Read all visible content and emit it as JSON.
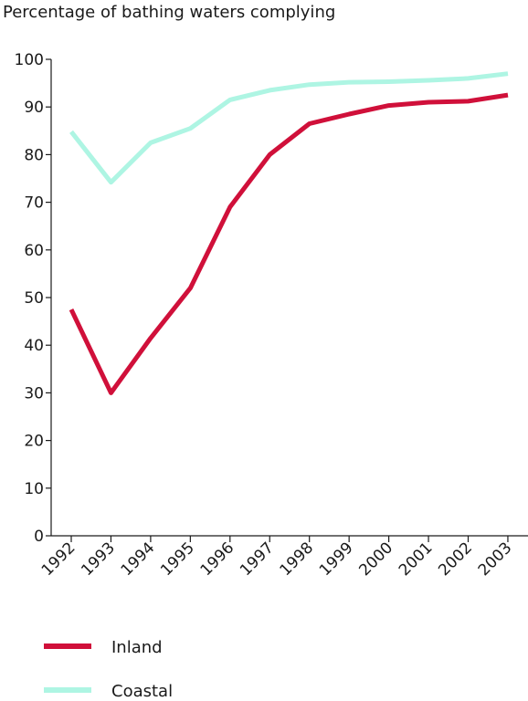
{
  "chart_data": {
    "type": "line",
    "ylabel": "Percentage of bathing waters complying",
    "xlabel": "",
    "categories": [
      "1992",
      "1993",
      "1994",
      "1995",
      "1996",
      "1997",
      "1998",
      "1999",
      "2000",
      "2001",
      "2002",
      "2003"
    ],
    "ylim": [
      0,
      100
    ],
    "yticks": [
      0,
      10,
      20,
      30,
      40,
      50,
      60,
      70,
      80,
      90,
      100
    ],
    "grid": false,
    "legend_position": "bottom-left",
    "series": [
      {
        "name": "Inland",
        "color": "#d0103a",
        "values": [
          47.5,
          30,
          41.5,
          52,
          69,
          80,
          86.5,
          88.5,
          90.3,
          91,
          91.2,
          92.5
        ]
      },
      {
        "name": "Coastal",
        "color": "#aef5e3",
        "values": [
          84.8,
          74.2,
          82.5,
          85.5,
          91.5,
          93.5,
          94.7,
          95.2,
          95.3,
          95.6,
          96,
          97
        ]
      }
    ]
  }
}
